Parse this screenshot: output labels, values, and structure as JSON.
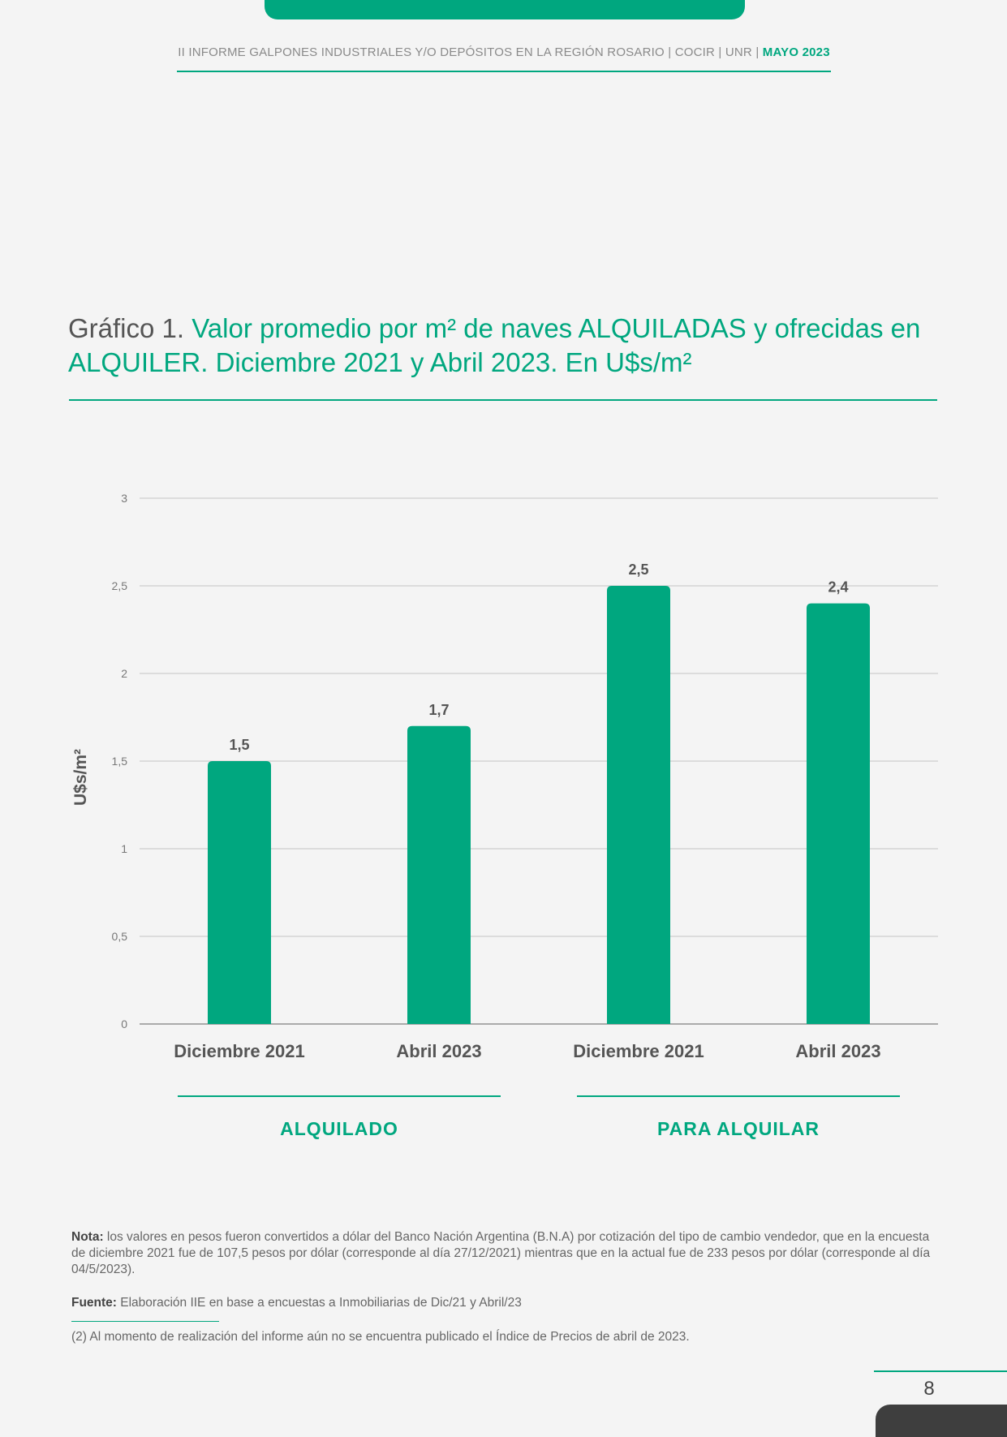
{
  "header": {
    "text": "II INFORME GALPONES INDUSTRIALES Y/O DEPÓSITOS EN LA REGIÓN ROSARIO | COCIR | UNR | ",
    "accent": "MAYO 2023"
  },
  "title": {
    "lead": "Gráfico 1. ",
    "main": "Valor promedio por m² de naves ALQUILADAS y ofrecidas en ALQUILER. Diciembre 2021 y Abril 2023. En U$s/m²"
  },
  "chart_data": {
    "type": "bar",
    "ylabel": "U$s/m²",
    "ylim": [
      0,
      3
    ],
    "yticks": [
      0,
      0.5,
      1,
      1.5,
      2,
      2.5,
      3
    ],
    "ytick_labels": [
      "0",
      "0,5",
      "1",
      "1,5",
      "2",
      "2,5",
      "3"
    ],
    "grid": true,
    "bar_color": "#00a77f",
    "categories": [
      "Diciembre 2021",
      "Abril 2023",
      "Diciembre 2021",
      "Abril 2023"
    ],
    "values": [
      1.5,
      1.7,
      2.5,
      2.4
    ],
    "data_labels": [
      "1,5",
      "1,7",
      "2,5",
      "2,4"
    ],
    "groups": [
      {
        "label": "ALQUILADO",
        "categories": [
          "Diciembre 2021",
          "Abril 2023"
        ]
      },
      {
        "label": "PARA ALQUILAR",
        "categories": [
          "Diciembre 2021",
          "Abril 2023"
        ]
      }
    ]
  },
  "note": {
    "label": "Nota:",
    "text": " los valores en pesos fueron convertidos a dólar del Banco Nación Argentina (B.N.A) por cotización del tipo de cambio vendedor, que en la encuesta de diciembre 2021 fue de 107,5 pesos por dólar (corresponde al día 27/12/2021) mientras que en la actual fue de 233 pesos por dólar (corresponde al día 04/5/2023)."
  },
  "source": {
    "label": "Fuente:",
    "text": " Elaboración IIE en base a encuestas a Inmobiliarias de Dic/21 y Abril/23"
  },
  "footnote": "(2) Al momento de realización del informe aún no se encuentra publicado el Índice de Precios de abril de 2023.",
  "page_number": "8"
}
